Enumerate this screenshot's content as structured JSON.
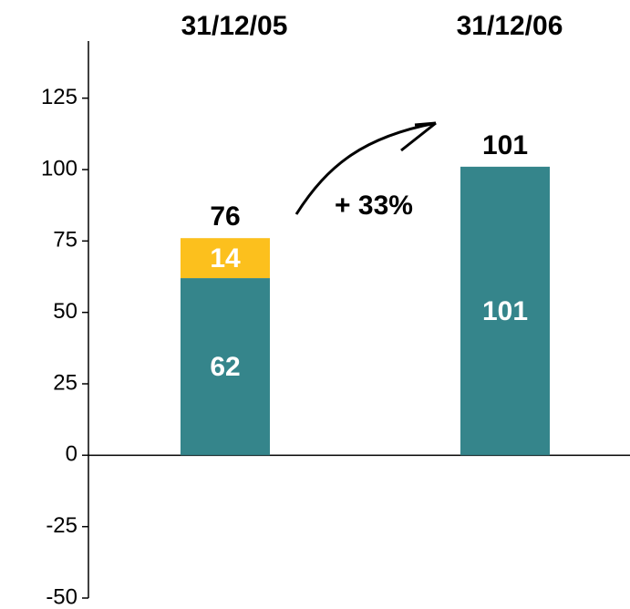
{
  "chart_data": {
    "type": "stacked_bar",
    "categories": [
      "31/12/05",
      "31/12/06"
    ],
    "series": [
      {
        "color": "#35858b",
        "values": [
          62,
          101
        ]
      },
      {
        "color": "#fcc01d",
        "values": [
          14,
          null
        ]
      }
    ],
    "totals": [
      76,
      101
    ],
    "annotation": "+ 33%",
    "ylim": [
      -50,
      145
    ],
    "yticks": [
      -50,
      -25,
      0,
      25,
      50,
      75,
      100,
      125
    ]
  }
}
